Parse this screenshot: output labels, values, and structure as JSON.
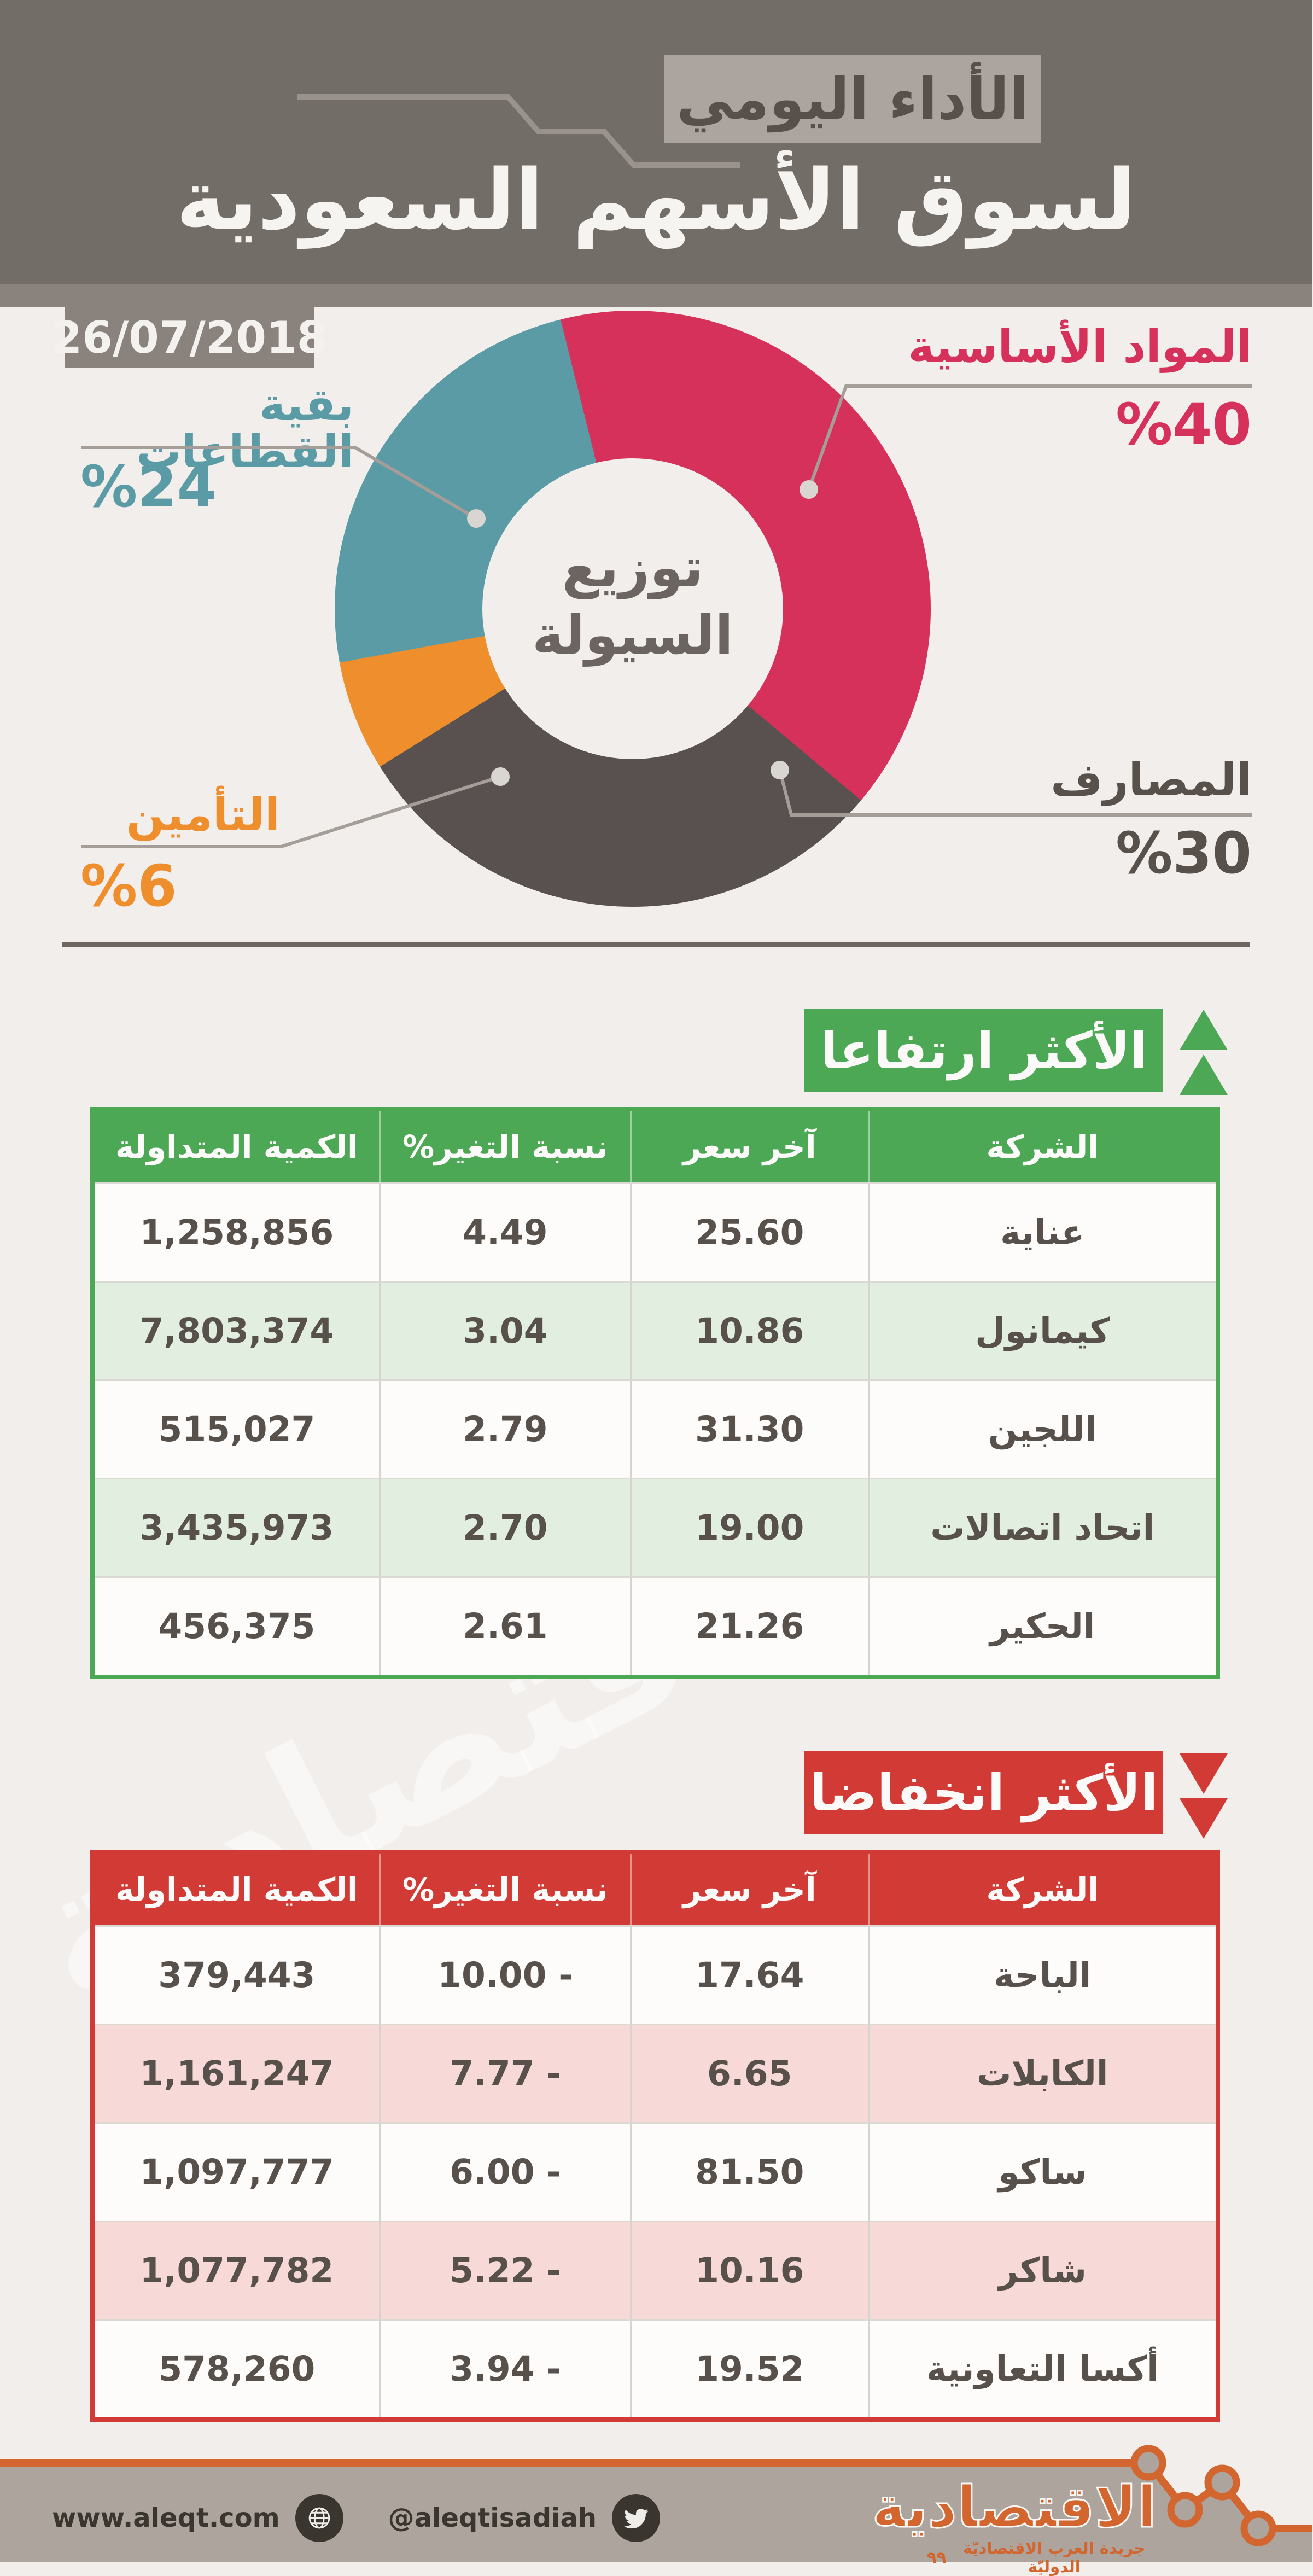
{
  "header": {
    "kicker": "الأداء اليومي",
    "title": "لسوق الأسهم السعودية",
    "date": "26/07/2018"
  },
  "colors": {
    "header_bg": "#736d68",
    "body_bg": "#f1eeeb",
    "green_accent": "#4ca855",
    "red_accent": "#d23b35",
    "orange_accent": "#d2662e",
    "crimson": "#d5315b",
    "teal": "#5b9ba6",
    "orange_segment": "#ef8e2c",
    "dark_segment": "#585150"
  },
  "chart_data": [
    {
      "id": "liquidity-donut",
      "type": "pie",
      "title_line1": "توزيع",
      "title_line2": "السيولة",
      "start_angle_deg": -14,
      "draw_order": [
        0,
        1,
        3,
        2
      ],
      "segments": [
        {
          "name": "المواد الأساسية",
          "value": 40,
          "value_label": "%40",
          "color": "#d5315b"
        },
        {
          "name": "المصارف",
          "value": 30,
          "value_label": "%30",
          "color": "#585150"
        },
        {
          "name": "بقية القطاعات",
          "value": 24,
          "value_label": "%24",
          "color": "#5b9ba6"
        },
        {
          "name": "التأمين",
          "value": 6,
          "value_label": "%6",
          "color": "#ef8e2c"
        }
      ]
    },
    {
      "id": "gainers",
      "type": "table",
      "title": "الأكثر ارتفاعا",
      "accent": "#4ca855",
      "zebra": "#e2efe0",
      "columns": [
        "الشركة",
        "آخر سعر",
        "نسبة التغير%",
        "الكمية المتداولة"
      ],
      "rows": [
        {
          "company": "عناية",
          "price": "25.60",
          "change": "4.49",
          "volume": "1,258,856"
        },
        {
          "company": "كيمانول",
          "price": "10.86",
          "change": "3.04",
          "volume": "7,803,374"
        },
        {
          "company": "اللجين",
          "price": "31.30",
          "change": "2.79",
          "volume": "515,027"
        },
        {
          "company": "اتحاد اتصالات",
          "price": "19.00",
          "change": "2.70",
          "volume": "3,435,973"
        },
        {
          "company": "الحكير",
          "price": "21.26",
          "change": "2.61",
          "volume": "456,375"
        }
      ]
    },
    {
      "id": "losers",
      "type": "table",
      "title": "الأكثر انخفاضا",
      "accent": "#d23b35",
      "zebra": "#f7d9d7",
      "columns": [
        "الشركة",
        "آخر سعر",
        "نسبة التغير%",
        "الكمية المتداولة"
      ],
      "rows": [
        {
          "company": "الباحة",
          "price": "17.64",
          "change": "10.00 -",
          "volume": "379,443"
        },
        {
          "company": "الكابلات",
          "price": "6.65",
          "change": "7.77 -",
          "volume": "1,161,247"
        },
        {
          "company": "ساكو",
          "price": "81.50",
          "change": "6.00 -",
          "volume": "1,097,777"
        },
        {
          "company": "شاكر",
          "price": "10.16",
          "change": "5.22 -",
          "volume": "1,077,782"
        },
        {
          "company": "أكسا التعاونية",
          "price": "19.52",
          "change": "3.94 -",
          "volume": "578,260"
        }
      ]
    }
  ],
  "watermark": "الاقتصادية",
  "footer": {
    "twitter_handle": "@aleqtisadiah",
    "website": "www.aleqt.com",
    "logo": "الاقتصادية",
    "tagline": "جريدة العرب الاقتصاديّة الدوليّة",
    "quote_mark": "٩٩"
  }
}
